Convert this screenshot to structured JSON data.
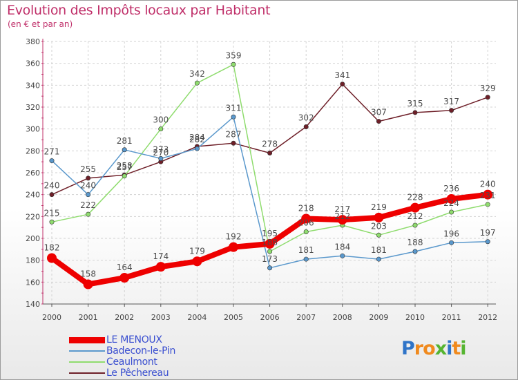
{
  "chart_data": {
    "type": "line",
    "title": "Evolution des Impôts locaux par Habitant",
    "subtitle": "(en € et par an)",
    "xlabel": "",
    "ylabel": "",
    "ylim": [
      140,
      380
    ],
    "yticks": [
      140,
      160,
      180,
      200,
      220,
      240,
      260,
      280,
      300,
      320,
      340,
      360,
      380
    ],
    "x": [
      "2000",
      "2001",
      "2002",
      "2003",
      "2004",
      "2005",
      "2006",
      "2007",
      "2008",
      "2009",
      "2010",
      "2011",
      "2012"
    ],
    "grid": true,
    "legend_position": "bottom-left",
    "series": [
      {
        "name": "Le Pêchereau",
        "color": "#6e1f28",
        "width": 1.5,
        "values": [
          240,
          255,
          258,
          270,
          284,
          287,
          278,
          302,
          341,
          307,
          315,
          317,
          329
        ]
      },
      {
        "name": "Ceaulmont",
        "color": "#8fdc6e",
        "width": 1.5,
        "values": [
          215,
          222,
          257,
          300,
          342,
          359,
          188,
          206,
          212,
          203,
          212,
          224,
          231
        ]
      },
      {
        "name": "Badecon-le-Pin",
        "color": "#5a98cc",
        "width": 1.5,
        "values": [
          271,
          240,
          281,
          273,
          282,
          311,
          173,
          181,
          184,
          181,
          188,
          196,
          197
        ]
      },
      {
        "name": "LE MENOUX",
        "color": "#ee0000",
        "width": 8,
        "values": [
          182,
          158,
          164,
          174,
          179,
          192,
          195,
          218,
          217,
          219,
          228,
          236,
          240
        ]
      }
    ]
  },
  "legend": [
    {
      "label": "LE MENOUX",
      "color": "#ee0000"
    },
    {
      "label": "Badecon-le-Pin",
      "color": "#5a98cc"
    },
    {
      "label": "Ceaulmont",
      "color": "#8fdc6e"
    },
    {
      "label": "Le Pêchereau",
      "color": "#6e1f28"
    }
  ],
  "brand": {
    "letters": [
      "P",
      "r",
      "o",
      "x",
      "i",
      "t",
      "i"
    ],
    "colors": [
      "#2f74c8",
      "#f08a1e",
      "#f08a1e",
      "#55b431",
      "#2f74c8",
      "#f08a1e",
      "#55b431"
    ]
  }
}
